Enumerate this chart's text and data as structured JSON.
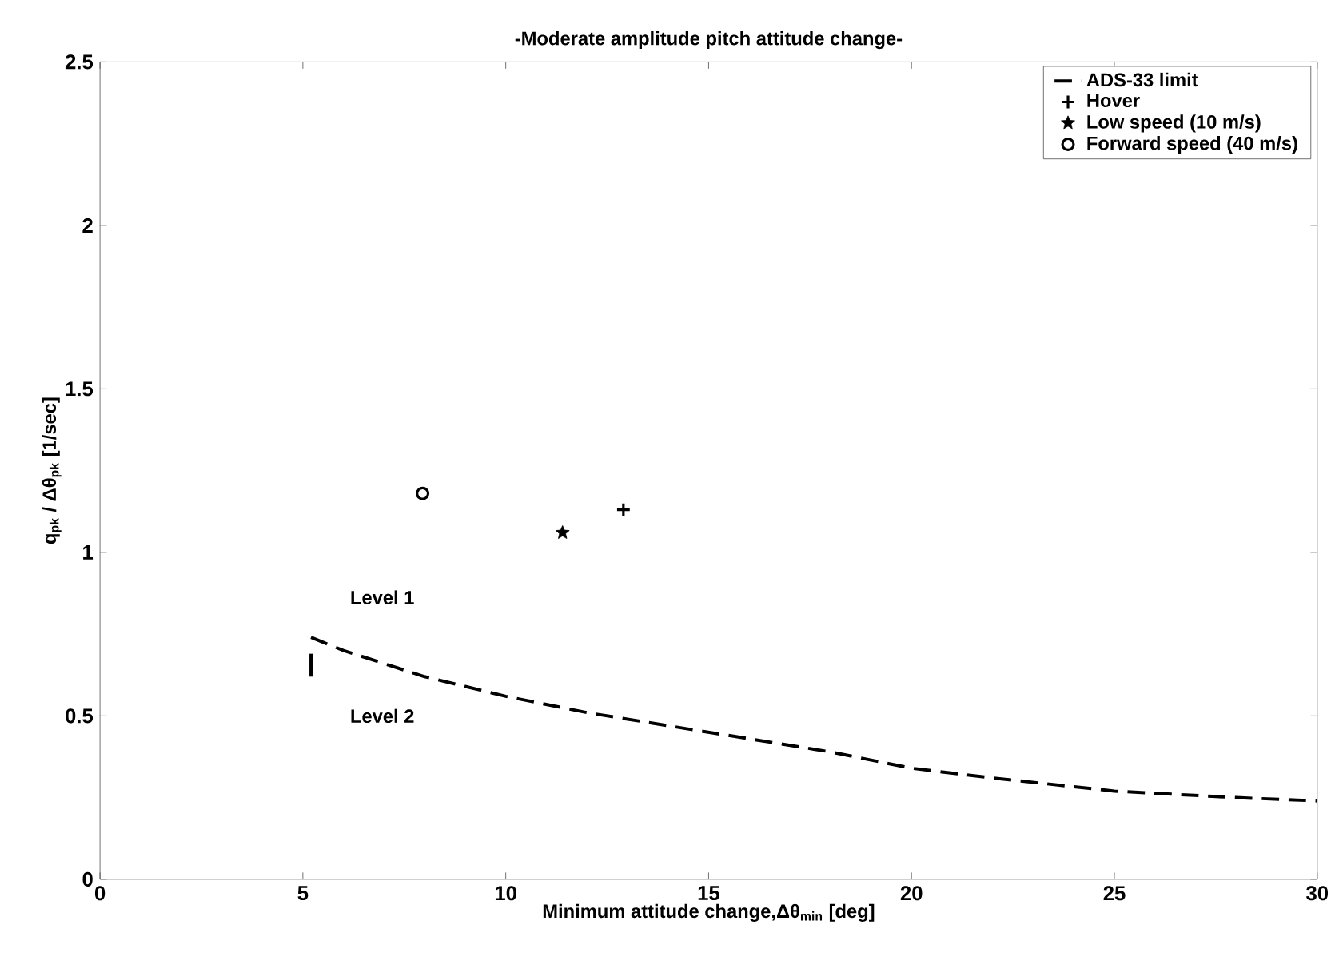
{
  "chart_data": {
    "type": "line",
    "title": "-Moderate amplitude pitch attitude change-",
    "xlabel": "Minimum attitude change,Δθ$_{min}$ [deg]",
    "ylabel": "q$_{pk}$ / Δθ$_{pk}$ [1/sec]",
    "series": [
      {
        "name": "ADS-33 limit",
        "color": "#000000",
        "line_style": "dashed",
        "marker": "none",
        "x": [
          5.2,
          6,
          7,
          8,
          9,
          10,
          12,
          14,
          16,
          18,
          20,
          22,
          25,
          28,
          30
        ],
        "values": [
          0.74,
          0.7,
          0.66,
          0.62,
          0.59,
          0.56,
          0.51,
          0.47,
          0.43,
          0.39,
          0.34,
          0.31,
          0.27,
          0.25,
          0.24
        ]
      },
      {
        "color": "#000000",
        "line_style": "solid",
        "marker": "none",
        "x": [
          5.2,
          5.2
        ],
        "values": [
          0.62,
          0.69
        ]
      },
      {
        "name": "Hover",
        "type": "scatter",
        "color": "#000000",
        "marker": "cross",
        "x": [
          12.9
        ],
        "values": [
          1.13
        ]
      },
      {
        "name": "Low speed (10 m/s)",
        "type": "scatter",
        "color": "#000000",
        "marker": "star",
        "x": [
          11.4
        ],
        "values": [
          1.06
        ]
      },
      {
        "name": "Forward speed (40 m/s)",
        "type": "scatter",
        "color": "#000000",
        "marker": "circle",
        "x": [
          7.95
        ],
        "values": [
          1.18
        ]
      }
    ],
    "annotations": [
      "Level 1",
      "Level 2"
    ],
    "xlim": [
      0,
      30
    ],
    "ylim": [
      0,
      2.5
    ],
    "xticks": [
      0,
      5,
      10,
      15,
      20,
      25,
      30
    ],
    "yticks": [
      0,
      0.5,
      1,
      1.5,
      2,
      2.5
    ],
    "grid": false,
    "legend": "top right"
  }
}
